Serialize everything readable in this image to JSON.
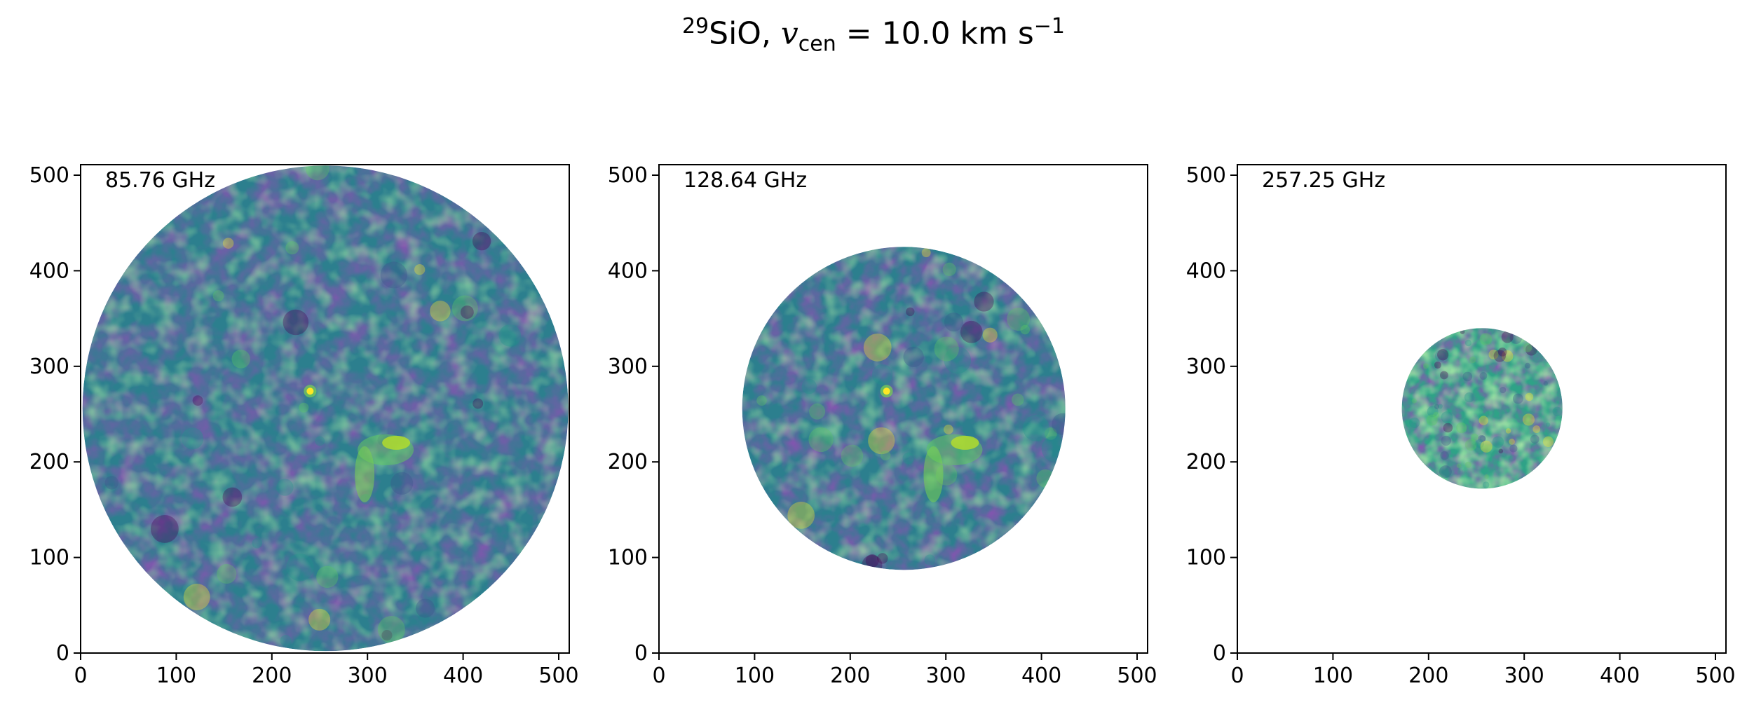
{
  "title": {
    "isotope_mass": "29",
    "species": "SiO, ",
    "var_main": "v",
    "var_sub": "cen",
    "value_text": " = 10.0 km s",
    "exponent": "−1"
  },
  "chart_data": [
    {
      "type": "heatmap",
      "label": "85.76 GHz",
      "xlim": [
        0,
        511
      ],
      "ylim": [
        0,
        511
      ],
      "xticks": [
        0,
        100,
        200,
        300,
        400,
        500
      ],
      "yticks": [
        0,
        100,
        200,
        300,
        400,
        500
      ],
      "field_center": [
        256,
        256
      ],
      "field_radius": 254,
      "colormap": "viridis",
      "features": [
        {
          "x": 240,
          "y": 274,
          "kind": "compact-peak"
        },
        {
          "x": 330,
          "y": 220,
          "kind": "extended-bright"
        }
      ]
    },
    {
      "type": "heatmap",
      "label": "128.64 GHz",
      "xlim": [
        0,
        511
      ],
      "ylim": [
        0,
        511
      ],
      "xticks": [
        0,
        100,
        200,
        300,
        400,
        500
      ],
      "yticks": [
        0,
        100,
        200,
        300,
        400,
        500
      ],
      "field_center": [
        256,
        256
      ],
      "field_radius": 169,
      "colormap": "viridis",
      "features": [
        {
          "x": 238,
          "y": 274,
          "kind": "compact-peak"
        },
        {
          "x": 320,
          "y": 220,
          "kind": "extended-bright"
        }
      ]
    },
    {
      "type": "heatmap",
      "label": "257.25 GHz",
      "xlim": [
        0,
        511
      ],
      "ylim": [
        0,
        511
      ],
      "xticks": [
        0,
        100,
        200,
        300,
        400,
        500
      ],
      "yticks": [
        0,
        100,
        200,
        300,
        400,
        500
      ],
      "field_center": [
        256,
        256
      ],
      "field_radius": 84,
      "colormap": "viridis",
      "features": []
    }
  ]
}
